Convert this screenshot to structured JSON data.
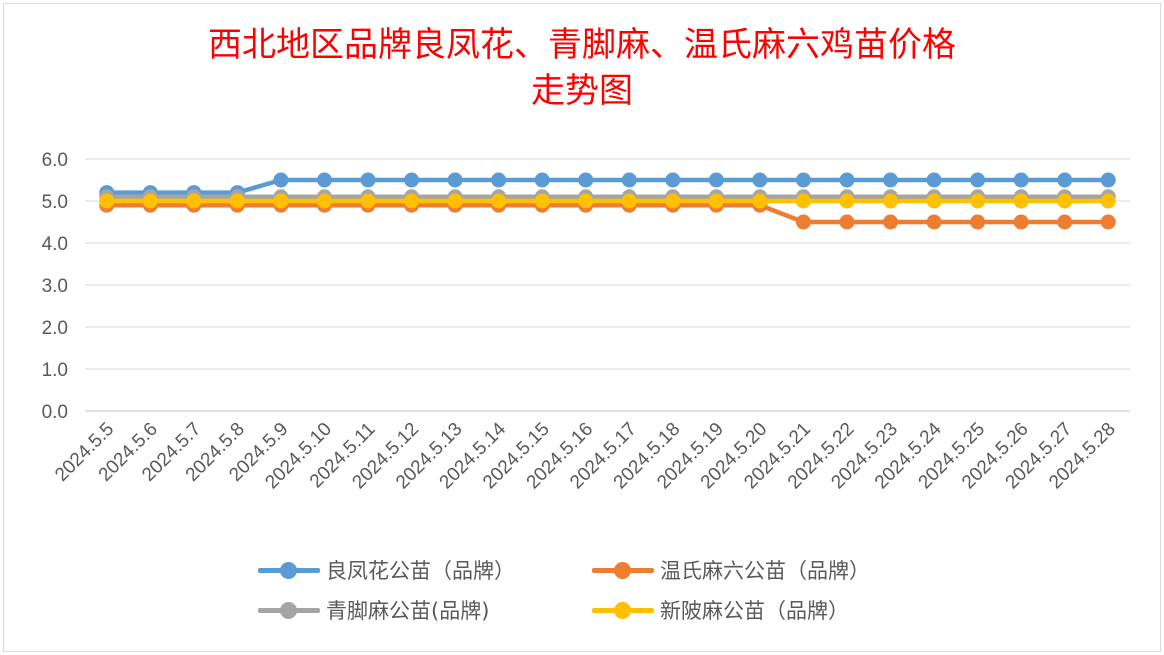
{
  "chart_data": {
    "type": "line",
    "title": [
      "西北地区品牌良凤花、青脚麻、温氏麻六鸡苗价格",
      "走势图"
    ],
    "xlabel": "",
    "ylabel": "",
    "ylim": [
      0,
      6
    ],
    "yticks": [
      "0.0",
      "1.0",
      "2.0",
      "3.0",
      "4.0",
      "5.0",
      "6.0"
    ],
    "grid": true,
    "legend_position": "bottom",
    "categories": [
      "2024.5.5",
      "2024.5.6",
      "2024.5.7",
      "2024.5.8",
      "2024.5.9",
      "2024.5.10",
      "2024.5.11",
      "2024.5.12",
      "2024.5.13",
      "2024.5.14",
      "2024.5.15",
      "2024.5.16",
      "2024.5.17",
      "2024.5.18",
      "2024.5.19",
      "2024.5.20",
      "2024.5.21",
      "2024.5.22",
      "2024.5.23",
      "2024.5.24",
      "2024.5.25",
      "2024.5.26",
      "2024.5.27",
      "2024.5.28"
    ],
    "series": [
      {
        "name": "良凤花公苗（品牌）",
        "color": "#5b9bd5",
        "values": [
          5.2,
          5.2,
          5.2,
          5.2,
          5.5,
          5.5,
          5.5,
          5.5,
          5.5,
          5.5,
          5.5,
          5.5,
          5.5,
          5.5,
          5.5,
          5.5,
          5.5,
          5.5,
          5.5,
          5.5,
          5.5,
          5.5,
          5.5,
          5.5
        ]
      },
      {
        "name": "温氏麻六公苗（品牌）",
        "color": "#ed7d31",
        "values": [
          4.9,
          4.9,
          4.9,
          4.9,
          4.9,
          4.9,
          4.9,
          4.9,
          4.9,
          4.9,
          4.9,
          4.9,
          4.9,
          4.9,
          4.9,
          4.9,
          4.5,
          4.5,
          4.5,
          4.5,
          4.5,
          4.5,
          4.5,
          4.5
        ]
      },
      {
        "name": "青脚麻公苗(品牌)",
        "color": "#a5a5a5",
        "values": [
          5.1,
          5.1,
          5.1,
          5.1,
          5.1,
          5.1,
          5.1,
          5.1,
          5.1,
          5.1,
          5.1,
          5.1,
          5.1,
          5.1,
          5.1,
          5.1,
          5.1,
          5.1,
          5.1,
          5.1,
          5.1,
          5.1,
          5.1,
          5.1
        ]
      },
      {
        "name": "新陂麻公苗（品牌）",
        "color": "#ffc000",
        "values": [
          5.0,
          5.0,
          5.0,
          5.0,
          5.0,
          5.0,
          5.0,
          5.0,
          5.0,
          5.0,
          5.0,
          5.0,
          5.0,
          5.0,
          5.0,
          5.0,
          5.0,
          5.0,
          5.0,
          5.0,
          5.0,
          5.0,
          5.0,
          5.0
        ]
      }
    ]
  }
}
